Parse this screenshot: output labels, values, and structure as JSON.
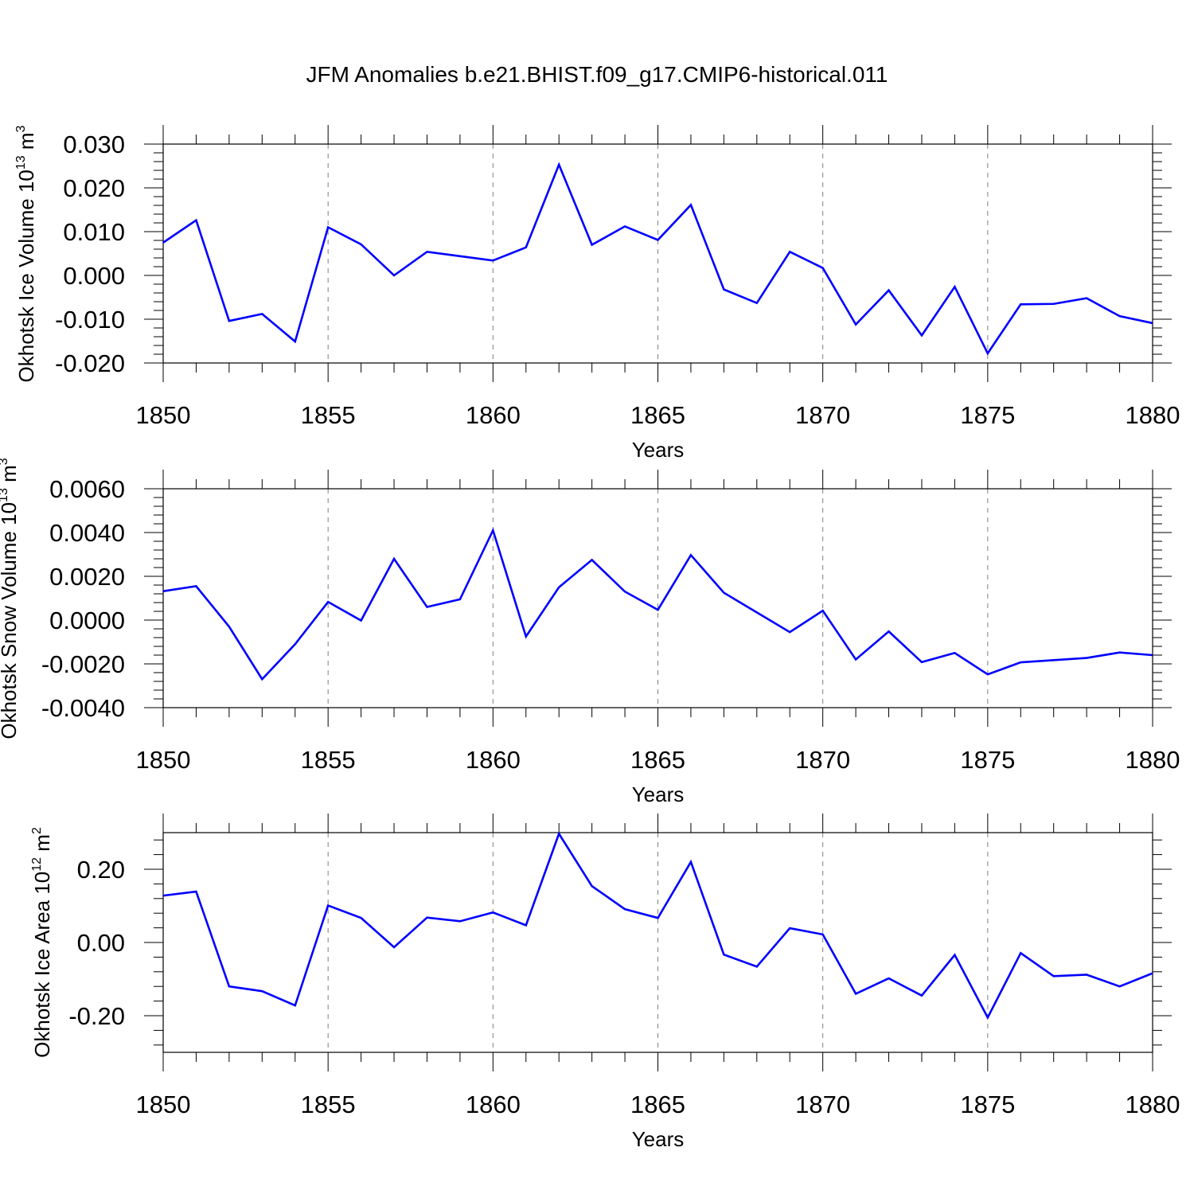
{
  "title": "JFM Anomalies b.e21.BHIST.f09_g17.CMIP6-historical.011",
  "colors": {
    "series": "#0000ff",
    "axis": "#000000",
    "grid": "#808080"
  },
  "chart_data": [
    {
      "type": "line",
      "title": "",
      "xlabel": "Years",
      "ylabel_prefix": "Okhotsk Ice Volume 10",
      "ylabel_exp": "13",
      "ylabel_unit": " m",
      "ylabel_unit_exp": "3",
      "xlim": [
        1850,
        1880
      ],
      "ylim": [
        -0.02,
        0.03
      ],
      "x_ticks": [
        1850,
        1855,
        1860,
        1865,
        1870,
        1875,
        1880
      ],
      "x_tick_labels": [
        "1850",
        "1855",
        "1860",
        "1865",
        "1870",
        "1875",
        "1880"
      ],
      "y_ticks": [
        -0.02,
        -0.01,
        0.0,
        0.01,
        0.02,
        0.03
      ],
      "y_tick_labels": [
        "-0.020",
        "-0.010",
        "0.000",
        "0.010",
        "0.020",
        "0.030"
      ],
      "grid": "vertical dashed at major x ticks",
      "x": [
        1850,
        1851,
        1852,
        1853,
        1854,
        1855,
        1856,
        1857,
        1858,
        1859,
        1860,
        1861,
        1862,
        1863,
        1864,
        1865,
        1866,
        1867,
        1868,
        1869,
        1870,
        1871,
        1872,
        1873,
        1874,
        1875,
        1876,
        1877,
        1878,
        1879,
        1880
      ],
      "y": [
        0.0075,
        0.0126,
        -0.0104,
        -0.0088,
        -0.0151,
        0.011,
        0.0071,
        0.0,
        0.0054,
        0.0044,
        0.0034,
        0.0064,
        0.0253,
        0.007,
        0.0112,
        0.0081,
        0.0161,
        -0.0032,
        -0.0063,
        0.0054,
        0.0017,
        -0.0112,
        -0.0034,
        -0.0137,
        -0.0026,
        -0.0178,
        -0.0066,
        -0.0065,
        -0.0052,
        -0.0093,
        -0.0109
      ]
    },
    {
      "type": "line",
      "title": "",
      "xlabel": "Years",
      "ylabel_prefix": "Okhotsk Snow Volume 10",
      "ylabel_exp": "13",
      "ylabel_unit": " m",
      "ylabel_unit_exp": "3",
      "xlim": [
        1850,
        1880
      ],
      "ylim": [
        -0.004,
        0.006
      ],
      "x_ticks": [
        1850,
        1855,
        1860,
        1865,
        1870,
        1875,
        1880
      ],
      "x_tick_labels": [
        "1850",
        "1855",
        "1860",
        "1865",
        "1870",
        "1875",
        "1880"
      ],
      "y_ticks": [
        -0.004,
        -0.002,
        0.0,
        0.002,
        0.004,
        0.006
      ],
      "y_tick_labels": [
        "-0.0040",
        "-0.0020",
        "0.0000",
        "0.0020",
        "0.0040",
        "0.0060"
      ],
      "grid": "vertical dashed at major x ticks",
      "x": [
        1850,
        1851,
        1852,
        1853,
        1854,
        1855,
        1856,
        1857,
        1858,
        1859,
        1860,
        1861,
        1862,
        1863,
        1864,
        1865,
        1866,
        1867,
        1868,
        1869,
        1870,
        1871,
        1872,
        1873,
        1874,
        1875,
        1876,
        1877,
        1878,
        1879,
        1880
      ],
      "y": [
        0.00132,
        0.00155,
        -0.0003,
        -0.0027,
        -0.0011,
        0.00083,
        -2e-05,
        0.0028,
        0.0006,
        0.00095,
        0.0041,
        -0.00075,
        0.0015,
        0.00275,
        0.0013,
        0.00047,
        0.00297,
        0.00125,
        0.00035,
        -0.00055,
        0.00043,
        -0.0018,
        -0.00052,
        -0.00192,
        -0.0015,
        -0.00248,
        -0.00193,
        -0.00183,
        -0.00173,
        -0.00148,
        -0.0016
      ]
    },
    {
      "type": "line",
      "title": "",
      "xlabel": "Years",
      "ylabel_prefix": "Okhotsk Ice Area 10",
      "ylabel_exp": "12",
      "ylabel_unit": " m",
      "ylabel_unit_exp": "2",
      "xlim": [
        1850,
        1880
      ],
      "ylim": [
        -0.3,
        0.3
      ],
      "x_ticks": [
        1850,
        1855,
        1860,
        1865,
        1870,
        1875,
        1880
      ],
      "x_tick_labels": [
        "1850",
        "1855",
        "1860",
        "1865",
        "1870",
        "1875",
        "1880"
      ],
      "y_ticks": [
        -0.2,
        0.0,
        0.2
      ],
      "y_tick_labels": [
        "-0.20",
        "0.00",
        "0.20"
      ],
      "grid": "vertical dashed at major x ticks",
      "x": [
        1850,
        1851,
        1852,
        1853,
        1854,
        1855,
        1856,
        1857,
        1858,
        1859,
        1860,
        1861,
        1862,
        1863,
        1864,
        1865,
        1866,
        1867,
        1868,
        1869,
        1870,
        1871,
        1872,
        1873,
        1874,
        1875,
        1876,
        1877,
        1878,
        1879,
        1880
      ],
      "y": [
        0.128,
        0.139,
        -0.12,
        -0.133,
        -0.172,
        0.101,
        0.067,
        -0.013,
        0.068,
        0.058,
        0.082,
        0.047,
        0.297,
        0.154,
        0.091,
        0.067,
        0.22,
        -0.033,
        -0.066,
        0.039,
        0.022,
        -0.14,
        -0.098,
        -0.145,
        -0.034,
        -0.205,
        -0.029,
        -0.092,
        -0.088,
        -0.12,
        -0.084
      ]
    }
  ]
}
